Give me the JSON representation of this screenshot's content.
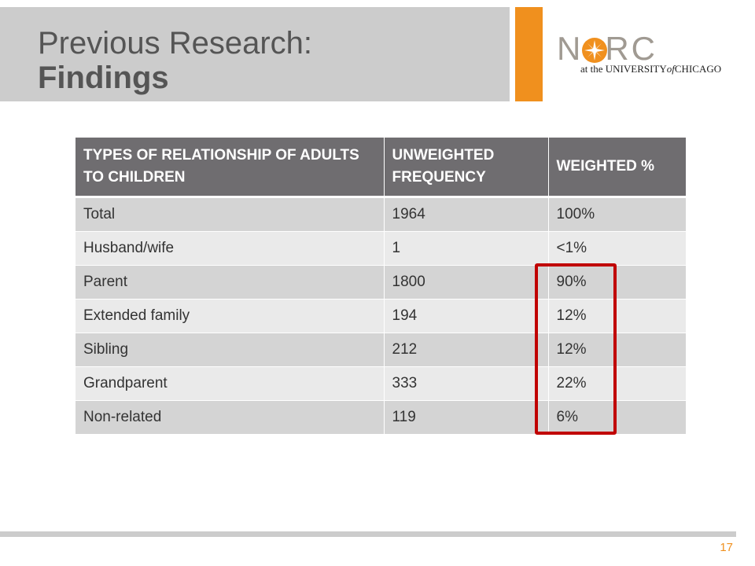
{
  "header": {
    "title_line1": "Previous Research:",
    "title_line2": "Findings"
  },
  "logo": {
    "wordmark": "NORC",
    "subtitle_prefix": "at the UNIVERSITY",
    "subtitle_of": "of",
    "subtitle_suffix": "CHICAGO",
    "colors": {
      "orange": "#f0901e",
      "gray": "#a09a92"
    }
  },
  "table": {
    "columns": [
      "TYPES OF RELATIONSHIP OF ADULTS TO CHILDREN",
      "UNWEIGHTED FREQUENCY",
      "WEIGHTED %"
    ],
    "rows": [
      [
        "Total",
        "1964",
        "100%"
      ],
      [
        "Husband/wife",
        "1",
        "<1%"
      ],
      [
        "Parent",
        "1800",
        "90%"
      ],
      [
        "Extended family",
        "194",
        "12%"
      ],
      [
        "Sibling",
        "212",
        "12%"
      ],
      [
        "Grandparent",
        "333",
        "22%"
      ],
      [
        "Non-related",
        "119",
        "6%"
      ]
    ]
  },
  "highlight": {
    "color": "#c00000"
  },
  "footer": {
    "page_number": "17"
  }
}
